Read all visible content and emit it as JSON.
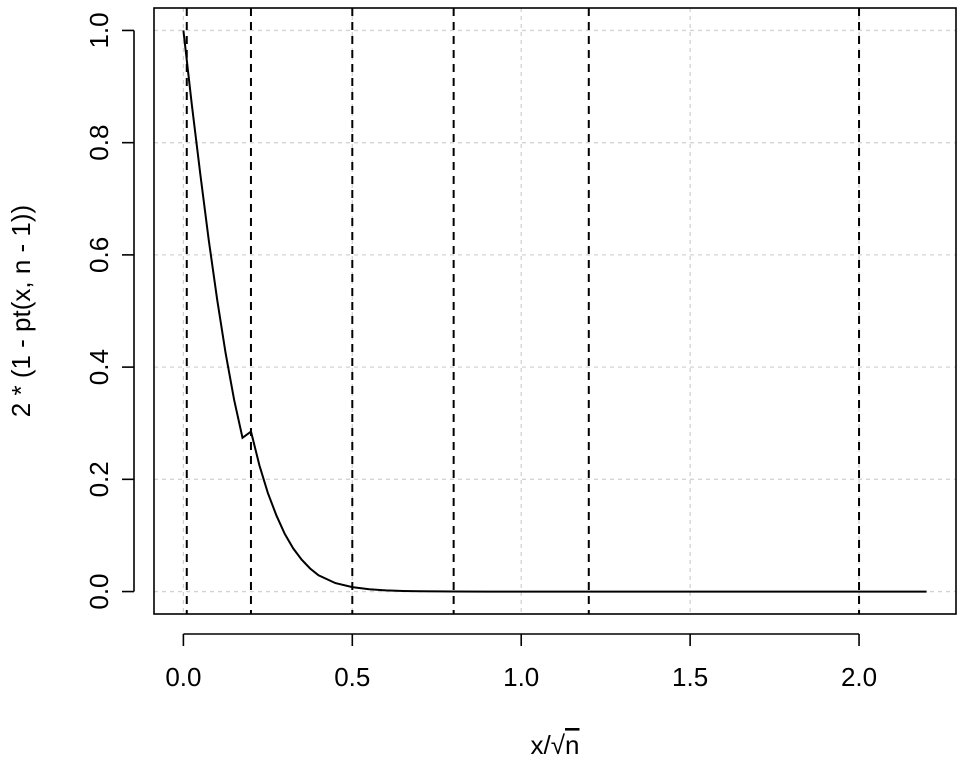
{
  "chart_data": {
    "type": "line",
    "xlabel_parts": {
      "x": "x",
      "slash": "/",
      "radical": "√",
      "n": "n"
    },
    "ylabel": "2 * (1 - pt(x, n - 1))",
    "xlim": [
      -0.087,
      2.287
    ],
    "ylim": [
      -0.04,
      1.04
    ],
    "xticks": [
      0,
      0.5,
      1,
      1.5,
      2
    ],
    "xtick_labels": [
      "0.0",
      "0.5",
      "1.0",
      "1.5",
      "2.0"
    ],
    "yticks": [
      0,
      0.2,
      0.4,
      0.6,
      0.8,
      1
    ],
    "ytick_labels": [
      "0.0",
      "0.2",
      "0.4",
      "0.6",
      "0.8",
      "1.0"
    ],
    "grid": true,
    "vertical_reference_lines": [
      0.01,
      0.2,
      0.5,
      0.8,
      1.2,
      2.0
    ],
    "series": [
      {
        "x": [
          0.0,
          0.025,
          0.05,
          0.075,
          0.1,
          0.125,
          0.15,
          0.175,
          0.2,
          0.225,
          0.25,
          0.275,
          0.3,
          0.325,
          0.35,
          0.375,
          0.4,
          0.45,
          0.5,
          0.55,
          0.6,
          0.65,
          0.7,
          0.8,
          0.9,
          1.0,
          1.2,
          1.5,
          2.0,
          2.2
        ],
        "y": [
          1.0,
          0.868,
          0.744,
          0.627,
          0.52,
          0.425,
          0.342,
          0.274,
          0.285,
          0.225,
          0.176,
          0.136,
          0.103,
          0.077,
          0.057,
          0.041,
          0.029,
          0.015,
          0.008,
          0.004,
          0.002,
          0.001,
          0.0005,
          0.0001,
          0.0,
          0.0,
          0.0,
          0.0,
          0.0,
          0.0
        ]
      }
    ]
  }
}
